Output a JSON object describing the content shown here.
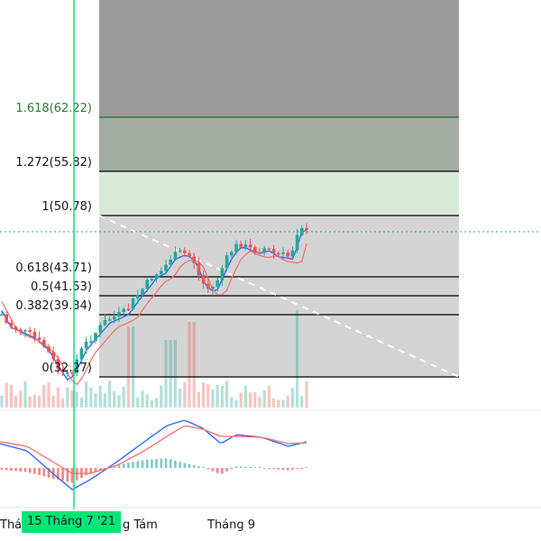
{
  "fib_levels": [
    {
      "label": "1.618(62.22)",
      "price": 62.22
    },
    {
      "label": "1.272(55.82)",
      "price": 55.82
    },
    {
      "label": "1(50.78)",
      "price": 50.78
    },
    {
      "label": "0.618(43.71)",
      "price": 43.71
    },
    {
      "label": "0.5(41.53)",
      "price": 41.53
    },
    {
      "label": "0.382(39.34)",
      "price": 39.34
    },
    {
      "label": "0(32.27)",
      "price": 32.27
    }
  ],
  "x_axis": {
    "labels": [
      "Thá",
      "g Tám",
      "Tháng 9"
    ]
  },
  "crosshair": {
    "date_label": "15 Tháng 7 '21"
  },
  "colors": {
    "up": "#26a69a",
    "down": "#ef5350",
    "crosshair": "#00e676",
    "fib_zone_top": "#9e9e9e",
    "fib_zone_mid": "#d8ebd8",
    "fib_zone_low": "#d1d1d1",
    "fib_top_line": "#2e7d32",
    "macd_line": "#2962ff",
    "signal_line": "#ff6d6d"
  }
}
